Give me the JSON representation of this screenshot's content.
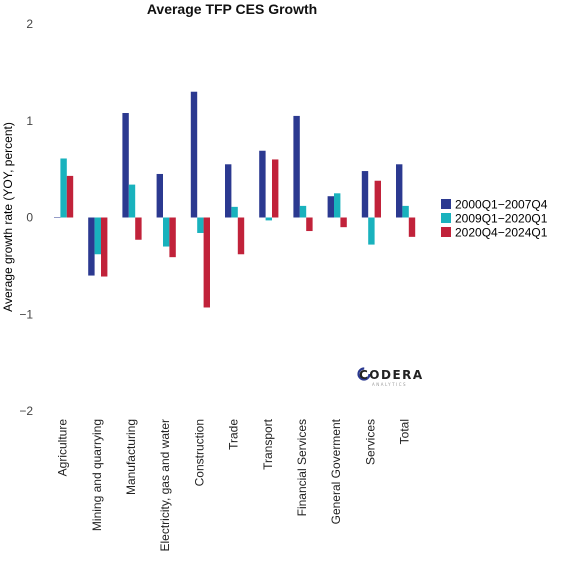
{
  "chart_data": {
    "type": "bar",
    "title": "Average TFP CES Growth",
    "xlabel": "",
    "ylabel": "Average growth rate (YOY, percent)",
    "ylim": [
      -2,
      2
    ],
    "yticks": [
      -2,
      -1,
      0,
      1,
      2
    ],
    "grid": false,
    "legend_position": "right",
    "categories": [
      "Agriculture",
      "Mining and quarrying",
      "Manufacturing",
      "Electricity, gas and water",
      "Construction",
      "Trade",
      "Transport",
      "Financial Services",
      "General Goverment",
      "Services",
      "Total"
    ],
    "series": [
      {
        "name": "2000Q1−2007Q4",
        "color": "#2b3990",
        "values": [
          0.0,
          -0.6,
          1.08,
          0.45,
          1.3,
          0.55,
          0.69,
          1.05,
          0.22,
          0.48,
          0.55
        ]
      },
      {
        "name": "2009Q1−2020Q1",
        "color": "#19b2bd",
        "values": [
          0.61,
          -0.38,
          0.34,
          -0.3,
          -0.16,
          0.11,
          -0.03,
          0.12,
          0.25,
          -0.28,
          0.12
        ]
      },
      {
        "name": "2020Q4−2024Q1",
        "color": "#c1223a",
        "values": [
          0.43,
          -0.61,
          -0.23,
          -0.41,
          -0.93,
          -0.38,
          0.6,
          -0.14,
          -0.1,
          0.38,
          -0.2
        ]
      }
    ]
  },
  "watermark": {
    "logo_text": "CODERA",
    "sub_text": "ANALYTICS"
  }
}
